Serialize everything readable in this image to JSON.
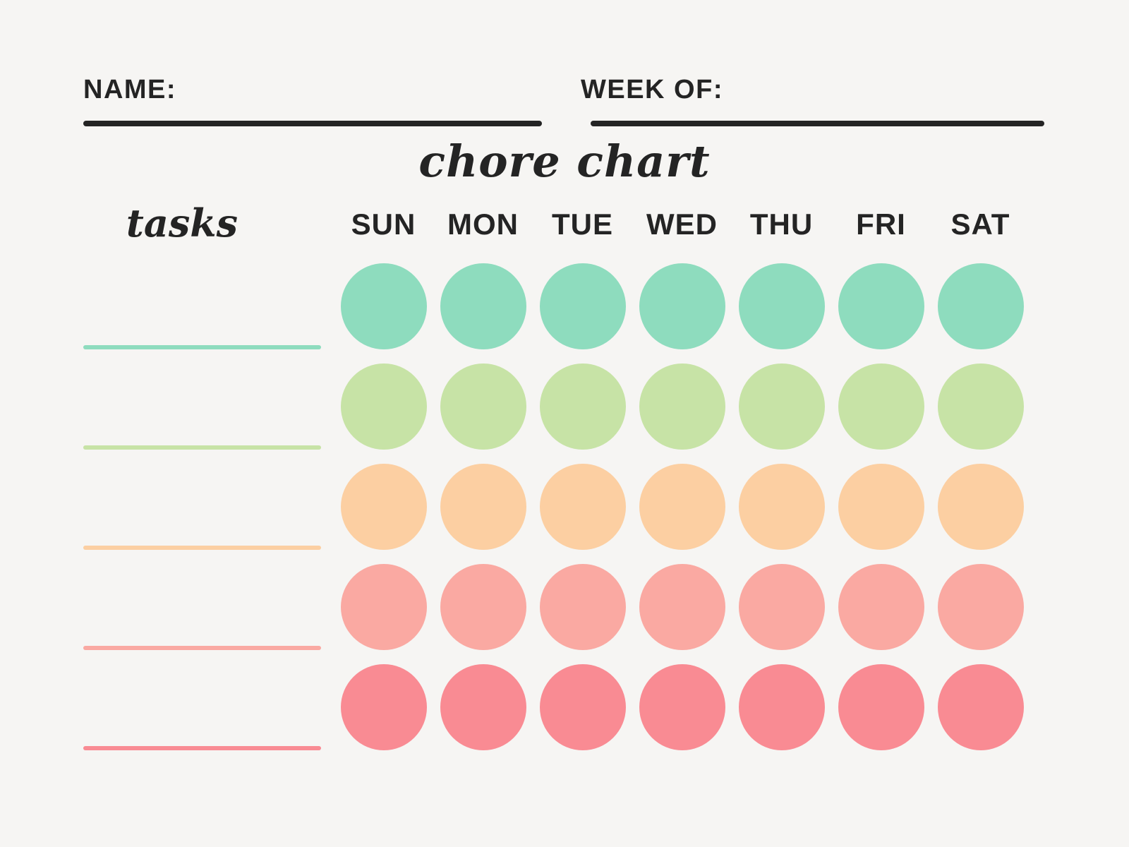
{
  "page": {
    "background_color": "#f6f5f3",
    "text_color": "#242424"
  },
  "header": {
    "name_label": "NAME:",
    "name_value": "",
    "week_of_label": "WEEK OF:",
    "week_of_value": "",
    "title": "chore chart",
    "tasks_label": "tasks"
  },
  "days": [
    "SUN",
    "MON",
    "TUE",
    "WED",
    "THU",
    "FRI",
    "SAT"
  ],
  "rows": [
    {
      "task_value": "",
      "color": "#8edcbe"
    },
    {
      "task_value": "",
      "color": "#c7e3a6"
    },
    {
      "task_value": "",
      "color": "#fccfa2"
    },
    {
      "task_value": "",
      "color": "#faa9a2"
    },
    {
      "task_value": "",
      "color": "#f98b93"
    }
  ]
}
